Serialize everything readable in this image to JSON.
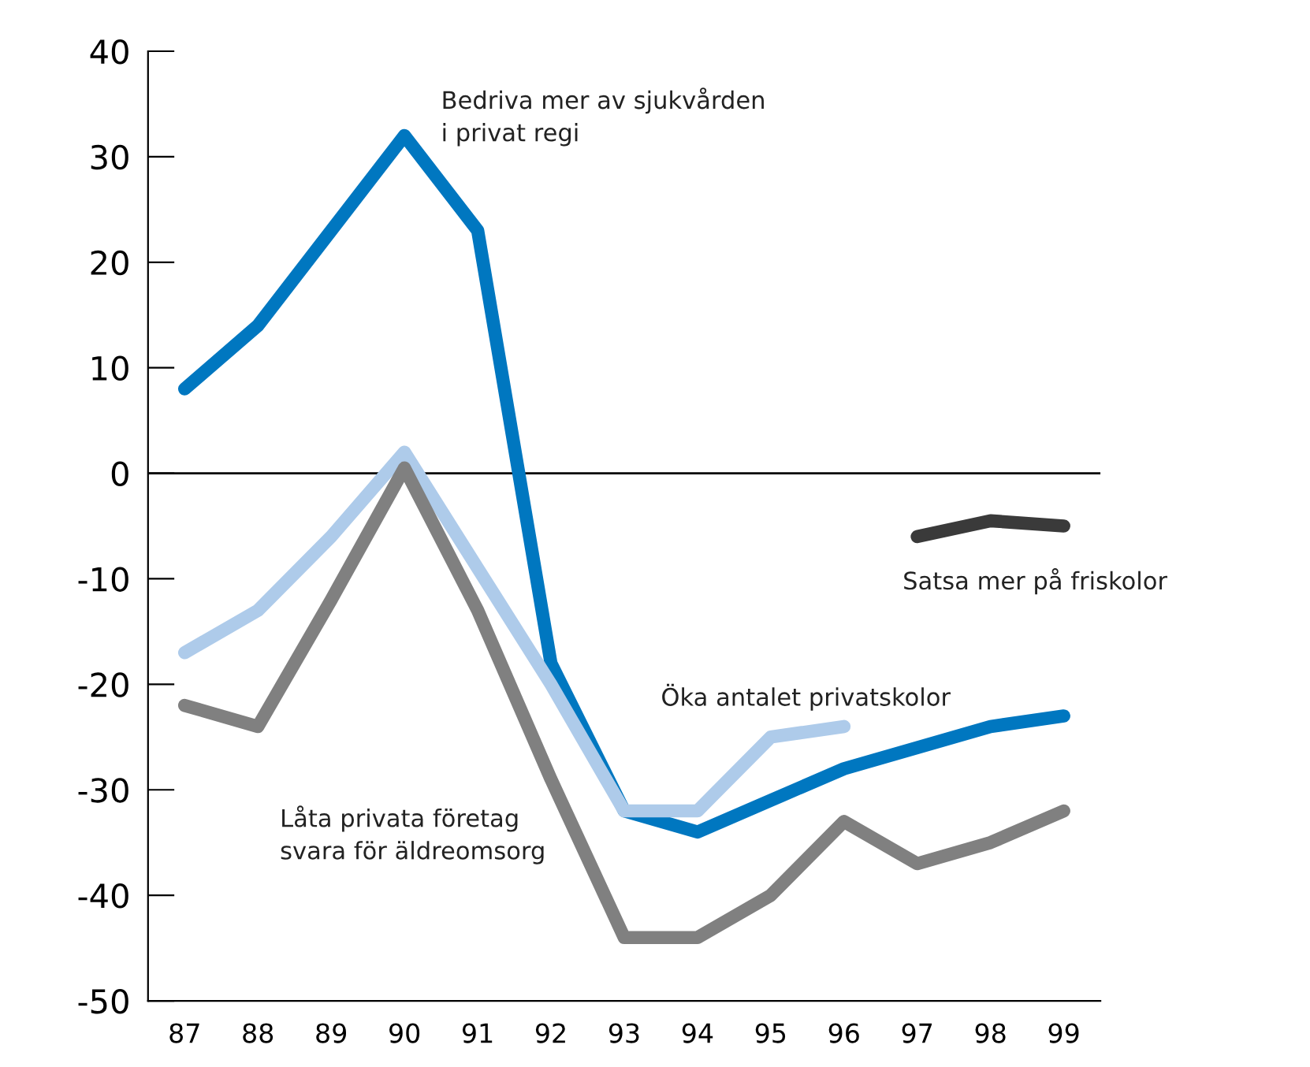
{
  "chart_data": {
    "type": "line",
    "categories": [
      "87",
      "88",
      "89",
      "90",
      "91",
      "92",
      "93",
      "94",
      "95",
      "96",
      "97",
      "98",
      "99"
    ],
    "series": [
      {
        "color": "#0077c0",
        "values": [
          8,
          14,
          23,
          32,
          23,
          -18,
          -32,
          -34,
          -31,
          -28,
          -26,
          -24,
          -23
        ]
      },
      {
        "color": "#aecbea",
        "values": [
          -17,
          -13,
          -6,
          2,
          -9,
          -20,
          -32,
          -32,
          -25,
          -24,
          null,
          null,
          null
        ]
      },
      {
        "color": "#808080",
        "values": [
          -22,
          -24,
          -12,
          0.5,
          -13,
          -29,
          -44,
          -44,
          -40,
          -33,
          -37,
          -35,
          -32
        ]
      },
      {
        "color": "#3a3a3a",
        "values": [
          null,
          null,
          null,
          null,
          null,
          null,
          null,
          null,
          null,
          null,
          -6,
          -4.5,
          -5
        ]
      }
    ],
    "ylim": [
      -50,
      40
    ],
    "yticks": [
      -50,
      -40,
      -30,
      -20,
      -10,
      0,
      10,
      20,
      30,
      40
    ],
    "ref_lines": [
      {
        "axis": "y",
        "value": 0,
        "color": "#000000"
      }
    ],
    "annotations": [
      {
        "text": "Bedriva mer av sjukvården\ni privat regi",
        "x": "90",
        "y": 32
      },
      {
        "text": "Öka antalet privatskolor",
        "x": "96",
        "y": -24
      },
      {
        "text": "Låta privata företag\nsvara för äldreomsorg",
        "x": "92",
        "y": -29
      },
      {
        "text": "Satsa mer på friskolor",
        "x": "98",
        "y": -4.5
      }
    ],
    "grid": false,
    "legend": false,
    "marker": "none",
    "line_style": "solid"
  }
}
